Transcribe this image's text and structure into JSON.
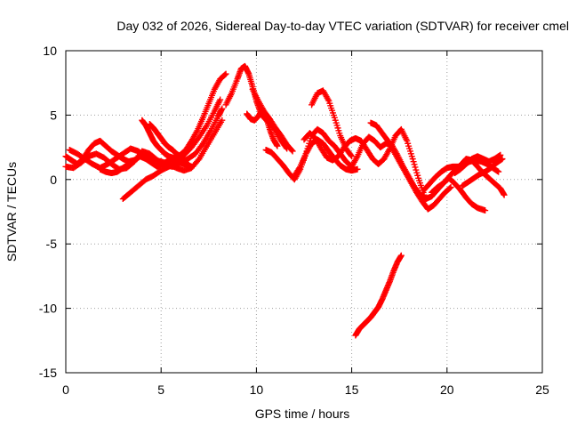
{
  "chart_data": {
    "type": "scatter",
    "title": "Day 032 of 2026, Sidereal Day-to-day VTEC variation (SDTVAR) for receiver cmel",
    "xlabel": "GPS time / hours",
    "ylabel": "SDTVAR / TECUs",
    "xlim": [
      0,
      25
    ],
    "ylim": [
      -15,
      10
    ],
    "xticks": [
      0,
      5,
      10,
      15,
      20,
      25
    ],
    "yticks": [
      -15,
      -10,
      -5,
      0,
      5,
      10
    ],
    "xtick_labels": [
      "0",
      "5",
      "10",
      "15",
      "20",
      "25"
    ],
    "ytick_labels": [
      "-15",
      "-10",
      "-5",
      "0",
      "5",
      "10"
    ],
    "grid": true,
    "marker": "+",
    "color": "#ff0000",
    "series": [
      {
        "name": "sat-a",
        "x": [
          0.0,
          0.3,
          0.6,
          0.9,
          1.2,
          1.5,
          1.8,
          2.1,
          2.4,
          2.7,
          3.0,
          3.3,
          3.6,
          3.9,
          4.2,
          4.5,
          4.8,
          5.1,
          5.4,
          5.7,
          6.0,
          6.3,
          6.6,
          6.9,
          7.2,
          7.5,
          7.8,
          8.1,
          8.4
        ],
        "y": [
          1.8,
          1.5,
          1.2,
          1.6,
          2.3,
          2.8,
          3.0,
          2.6,
          2.2,
          1.9,
          1.6,
          1.4,
          1.5,
          1.8,
          1.6,
          1.3,
          1.0,
          1.2,
          1.5,
          1.7,
          1.9,
          2.3,
          3.0,
          3.8,
          4.8,
          5.9,
          7.0,
          7.8,
          8.2
        ]
      },
      {
        "name": "sat-b",
        "x": [
          0.0,
          0.4,
          0.8,
          1.2,
          1.6,
          2.0,
          2.4,
          2.8,
          3.2,
          3.6,
          4.0,
          4.4,
          4.8,
          5.2,
          5.6,
          6.0,
          6.4,
          6.8,
          7.2,
          7.6,
          8.0,
          8.2
        ],
        "y": [
          1.0,
          0.9,
          1.3,
          1.8,
          2.0,
          1.7,
          1.2,
          0.8,
          0.9,
          1.4,
          2.2,
          2.0,
          1.5,
          1.1,
          1.0,
          1.3,
          1.6,
          2.0,
          2.8,
          3.8,
          4.9,
          5.5
        ]
      },
      {
        "name": "sat-c",
        "x": [
          0.2,
          0.6,
          1.0,
          1.4,
          1.8,
          2.2,
          2.6,
          3.0,
          3.4,
          3.8,
          4.2,
          4.6,
          5.0,
          5.4,
          5.8,
          6.2,
          6.6,
          7.0,
          7.4,
          7.8,
          8.2
        ],
        "y": [
          2.3,
          2.0,
          1.6,
          1.2,
          0.9,
          1.2,
          1.6,
          2.0,
          2.4,
          2.2,
          1.8,
          1.5,
          1.4,
          1.2,
          0.9,
          0.7,
          0.9,
          1.6,
          2.6,
          3.6,
          4.6
        ]
      },
      {
        "name": "sat-d",
        "x": [
          3.0,
          3.4,
          3.8,
          4.2,
          4.6,
          5.0,
          5.4,
          5.8,
          6.2,
          6.6,
          7.0,
          7.4,
          7.8,
          8.1
        ],
        "y": [
          -1.5,
          -1.0,
          -0.5,
          0.0,
          0.3,
          0.7,
          1.0,
          1.4,
          1.9,
          2.5,
          3.3,
          4.2,
          5.3,
          6.2
        ]
      },
      {
        "name": "sat-e",
        "x": [
          4.0,
          4.2,
          4.4,
          4.6,
          4.8,
          5.0,
          5.2,
          5.4,
          5.6,
          5.8,
          6.0,
          6.2,
          6.4,
          6.6
        ],
        "y": [
          4.6,
          4.2,
          3.6,
          3.0,
          2.6,
          2.3,
          2.0,
          1.8,
          1.7,
          1.5,
          1.3,
          1.2,
          1.1,
          1.0
        ]
      },
      {
        "name": "sat-f",
        "x": [
          4.4,
          4.6,
          4.8,
          5.0,
          5.2,
          5.4,
          5.6,
          5.8,
          6.0,
          6.2,
          6.4
        ],
        "y": [
          4.3,
          4.0,
          3.6,
          3.2,
          2.8,
          2.5,
          2.3,
          2.0,
          1.8,
          1.5,
          1.2
        ]
      },
      {
        "name": "sat-g",
        "x": [
          1.8,
          2.1,
          2.4,
          2.7,
          3.0,
          3.3,
          3.6
        ],
        "y": [
          0.8,
          0.6,
          0.5,
          0.6,
          0.9,
          1.2,
          1.5
        ]
      },
      {
        "name": "sat-h",
        "x": [
          8.4,
          8.7,
          9.0,
          9.2,
          9.4,
          9.6,
          9.8,
          10.0,
          10.2,
          10.4,
          10.6,
          10.8,
          11.0,
          11.3,
          11.6
        ],
        "y": [
          5.8,
          6.7,
          7.8,
          8.6,
          8.8,
          8.2,
          7.2,
          6.1,
          5.3,
          4.8,
          4.5,
          4.3,
          3.8,
          3.0,
          2.4
        ]
      },
      {
        "name": "sat-i",
        "x": [
          9.5,
          9.7,
          9.9,
          10.1,
          10.3,
          10.5,
          10.7,
          10.9,
          11.1
        ],
        "y": [
          5.1,
          4.7,
          4.6,
          4.9,
          5.4,
          4.9,
          3.9,
          3.1,
          2.6
        ]
      },
      {
        "name": "sat-j",
        "x": [
          9.8,
          10.1,
          10.4,
          10.7,
          11.0,
          11.3,
          11.6,
          11.9
        ],
        "y": [
          7.0,
          6.1,
          5.3,
          4.7,
          4.0,
          3.4,
          2.7,
          2.2
        ]
      },
      {
        "name": "sat-k",
        "x": [
          10.5,
          10.8,
          11.1,
          11.4,
          11.7,
          12.0,
          12.3,
          12.6,
          12.9,
          13.2,
          13.5,
          13.8,
          14.1,
          14.4,
          14.7,
          15.0,
          15.3,
          15.6,
          15.9,
          16.2,
          16.5,
          16.8,
          17.1,
          17.4,
          17.7,
          18.0,
          18.3,
          18.6,
          18.9,
          19.2,
          19.5,
          19.8,
          20.1,
          20.4,
          20.7,
          21.0,
          21.3,
          21.6,
          22.0
        ],
        "y": [
          2.3,
          2.1,
          1.6,
          1.1,
          0.5,
          0.0,
          0.8,
          2.0,
          3.4,
          3.9,
          3.6,
          3.0,
          2.6,
          2.0,
          1.4,
          1.0,
          1.8,
          2.8,
          3.3,
          3.0,
          2.5,
          2.8,
          2.7,
          1.9,
          1.0,
          0.2,
          -0.6,
          -1.2,
          -1.5,
          -1.3,
          -0.8,
          -0.3,
          0.1,
          -0.3,
          -0.8,
          -1.4,
          -1.9,
          -2.2,
          -2.4
        ]
      },
      {
        "name": "sat-l",
        "x": [
          12.5,
          12.8,
          13.1,
          13.4,
          13.7,
          14.0,
          14.3,
          14.6,
          14.9,
          15.2,
          15.5,
          15.8,
          16.1,
          16.4,
          16.7,
          17.0,
          17.3,
          17.6,
          17.9,
          18.2,
          18.5,
          18.8
        ],
        "y": [
          3.1,
          3.6,
          3.2,
          2.4,
          1.7,
          1.5,
          1.8,
          2.5,
          3.0,
          3.2,
          3.0,
          2.3,
          1.6,
          1.2,
          1.6,
          2.4,
          3.4,
          3.9,
          3.0,
          1.6,
          0.1,
          -1.2
        ]
      },
      {
        "name": "sat-m",
        "x": [
          12.9,
          13.2,
          13.5,
          13.8,
          14.1,
          14.4,
          14.7,
          15.0
        ],
        "y": [
          5.8,
          6.7,
          6.9,
          6.1,
          4.8,
          3.4,
          2.4,
          1.8
        ]
      },
      {
        "name": "sat-n",
        "x": [
          12.0,
          12.3,
          12.6,
          12.9,
          13.2,
          13.5,
          13.8,
          14.1,
          14.4,
          14.7,
          15.0,
          15.3
        ],
        "y": [
          0.3,
          1.0,
          2.0,
          2.8,
          3.1,
          2.8,
          2.2,
          1.6,
          1.1,
          0.8,
          0.7,
          0.8
        ]
      },
      {
        "name": "sat-o",
        "x": [
          16.0,
          16.3,
          16.6,
          16.9,
          17.2,
          17.5,
          17.8,
          18.1,
          18.4,
          18.7,
          19.0,
          19.3,
          19.6,
          19.9,
          20.2
        ],
        "y": [
          4.4,
          4.2,
          3.6,
          3.0,
          2.2,
          1.4,
          0.6,
          -0.2,
          -1.0,
          -1.7,
          -2.3,
          -2.0,
          -1.5,
          -1.0,
          -0.6
        ]
      },
      {
        "name": "sat-p",
        "x": [
          18.8,
          19.1,
          19.4,
          19.7,
          20.0,
          20.3,
          20.6,
          20.9,
          21.2,
          21.5,
          21.8,
          22.1,
          22.4,
          22.7
        ],
        "y": [
          -0.8,
          -0.3,
          0.2,
          0.6,
          0.9,
          1.0,
          1.0,
          1.2,
          1.4,
          1.5,
          1.4,
          1.2,
          0.9,
          0.6
        ]
      },
      {
        "name": "sat-q",
        "x": [
          20.4,
          20.7,
          21.0,
          21.3,
          21.6,
          21.9,
          22.2,
          22.5,
          22.8
        ],
        "y": [
          0.5,
          0.8,
          1.2,
          1.6,
          1.8,
          1.6,
          1.4,
          1.6,
          1.9
        ]
      },
      {
        "name": "sat-r",
        "x": [
          19.2,
          19.5,
          19.8,
          20.1,
          20.4,
          20.7,
          21.0,
          21.3,
          21.6,
          21.9,
          22.2,
          22.5,
          22.8,
          23.0
        ],
        "y": [
          -1.0,
          -0.6,
          -0.3,
          0.2,
          0.7,
          1.1,
          1.6,
          1.5,
          1.0,
          0.5,
          0.1,
          -0.3,
          -0.7,
          -1.2
        ]
      },
      {
        "name": "sat-s",
        "x": [
          20.8,
          21.1,
          21.4,
          21.7,
          22.0,
          22.3,
          22.6,
          22.9
        ],
        "y": [
          -0.5,
          -0.2,
          0.1,
          0.4,
          0.6,
          0.9,
          1.3,
          1.6
        ]
      },
      {
        "name": "sat-t",
        "x": [
          15.2,
          15.4,
          15.6,
          15.8,
          16.0,
          16.2,
          16.4,
          16.6,
          16.8,
          17.0,
          17.2,
          17.4,
          17.6
        ],
        "y": [
          -12.1,
          -11.6,
          -11.3,
          -11.0,
          -10.7,
          -10.3,
          -9.9,
          -9.3,
          -8.6,
          -7.9,
          -7.1,
          -6.4,
          -5.9
        ]
      }
    ]
  }
}
